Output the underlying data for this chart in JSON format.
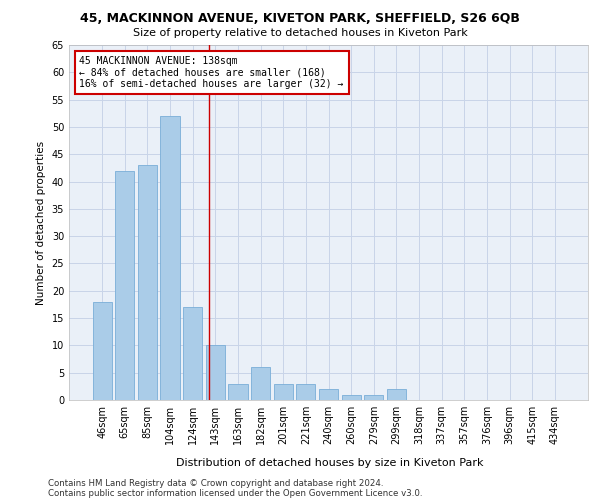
{
  "title1": "45, MACKINNON AVENUE, KIVETON PARK, SHEFFIELD, S26 6QB",
  "title2": "Size of property relative to detached houses in Kiveton Park",
  "xlabel": "Distribution of detached houses by size in Kiveton Park",
  "ylabel": "Number of detached properties",
  "categories": [
    "46sqm",
    "65sqm",
    "85sqm",
    "104sqm",
    "124sqm",
    "143sqm",
    "163sqm",
    "182sqm",
    "201sqm",
    "221sqm",
    "240sqm",
    "260sqm",
    "279sqm",
    "299sqm",
    "318sqm",
    "337sqm",
    "357sqm",
    "376sqm",
    "396sqm",
    "415sqm",
    "434sqm"
  ],
  "values": [
    18,
    42,
    43,
    52,
    17,
    10,
    3,
    6,
    3,
    3,
    2,
    1,
    1,
    2,
    0,
    0,
    0,
    0,
    0,
    0,
    0
  ],
  "bar_color": "#aacce8",
  "bar_edge_color": "#7aaed8",
  "grid_color": "#c8d4e8",
  "bg_color": "#eaf0f8",
  "red_line_x": 4.72,
  "annotation_line1": "45 MACKINNON AVENUE: 138sqm",
  "annotation_line2": "← 84% of detached houses are smaller (168)",
  "annotation_line3": "16% of semi-detached houses are larger (32) →",
  "annotation_box_color": "#ffffff",
  "annotation_box_edge": "#cc0000",
  "footnote1": "Contains HM Land Registry data © Crown copyright and database right 2024.",
  "footnote2": "Contains public sector information licensed under the Open Government Licence v3.0.",
  "ylim": [
    0,
    65
  ],
  "yticks": [
    0,
    5,
    10,
    15,
    20,
    25,
    30,
    35,
    40,
    45,
    50,
    55,
    60,
    65
  ]
}
